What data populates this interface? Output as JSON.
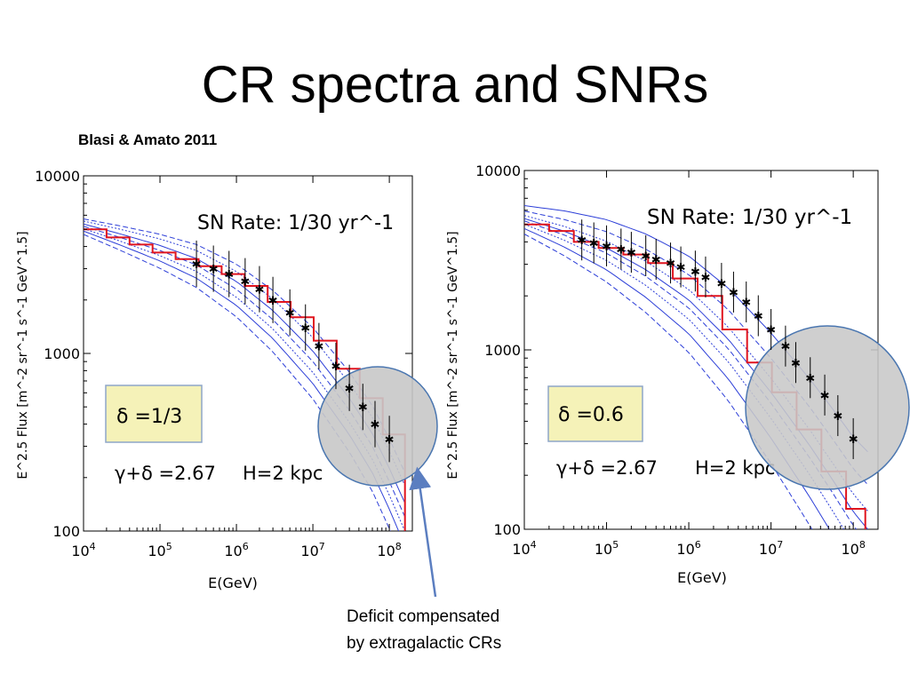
{
  "slide": {
    "title": "CR spectra and SNRs",
    "citation": "Blasi & Amato 2011",
    "caption_line1": "Deficit compensated",
    "caption_line2": "by extragalactic CRs"
  },
  "colors": {
    "model_lines": "#2d3fd8",
    "data_histogram": "#e0141e",
    "data_points": "#000000",
    "param_box_fill": "#f5f2b8",
    "param_box_border": "#8ea6c9",
    "highlight_circle_fill": "#c8c8c8",
    "highlight_circle_border": "#4a76b0",
    "arrow": "#5b7ec0"
  },
  "chart_data": [
    {
      "type": "line",
      "xscale": "log",
      "yscale": "log",
      "xlim": [
        10000,
        200000000
      ],
      "ylim": [
        100,
        10000
      ],
      "xlabel": "E(GeV)",
      "ylabel": "E^2.5 Flux [m^-2 sr^-1 s^-1 GeV^1.5]",
      "x_tick_labels": [
        "10^4",
        "10^5",
        "10^6",
        "10^7",
        "10^8"
      ],
      "y_tick_labels": [
        "100",
        "1000",
        "10000"
      ],
      "annotation_rate": "SN Rate: 1/30 yr^-1",
      "param_box_text": "δ =1/3",
      "annotation_params": "γ+δ =2.67",
      "annotation_halo": "H=2 kpc",
      "model_curve": {
        "x": [
          10000,
          30000,
          100000,
          300000,
          1000000,
          3000000,
          10000000,
          30000000,
          60000000,
          100000000,
          160000000
        ],
        "y": [
          5200,
          4500,
          3800,
          3150,
          2300,
          1550,
          900,
          480,
          300,
          190,
          120
        ]
      },
      "model_spread_factors": [
        0.9,
        0.94,
        0.97,
        1.0,
        1.03,
        1.07,
        1.1
      ],
      "histogram": {
        "edges": [
          10000,
          20000,
          40000,
          80000,
          160000,
          320000,
          640000,
          1280000,
          2560000,
          5120000,
          10240000,
          20480000,
          40960000,
          81920000,
          160000000
        ],
        "values": [
          5000,
          4500,
          4100,
          3700,
          3400,
          3100,
          2800,
          2400,
          1950,
          1600,
          1180,
          820,
          560,
          350
        ]
      },
      "points": {
        "x": [
          300000,
          500000,
          800000,
          1300000,
          2000000,
          3000000,
          5000000,
          8000000,
          12000000,
          20000000,
          30000000,
          45000000,
          65000000,
          100000000
        ],
        "y": [
          3200,
          3000,
          2800,
          2550,
          2300,
          2000,
          1700,
          1400,
          1100,
          850,
          640,
          500,
          400,
          330
        ],
        "err_factor": 1.35
      }
    },
    {
      "type": "line",
      "xscale": "log",
      "yscale": "log",
      "xlim": [
        10000,
        200000000
      ],
      "ylim": [
        100,
        10000
      ],
      "xlabel": "E(GeV)",
      "ylabel": "E^2.5 Flux [m^-2 sr^-1 s^-1 GeV^1.5]",
      "x_tick_labels": [
        "10^4",
        "10^5",
        "10^6",
        "10^7",
        "10^8"
      ],
      "y_tick_labels": [
        "100",
        "1000",
        "10000"
      ],
      "annotation_rate": "SN Rate: 1/30 yr^-1",
      "param_box_text": "δ =0.6",
      "annotation_params": "γ+δ =2.67",
      "annotation_halo": "H=2 kpc",
      "model_curve": {
        "x": [
          10000,
          30000,
          100000,
          300000,
          1000000,
          3000000,
          10000000,
          30000000,
          60000000,
          100000000,
          150000000
        ],
        "y": [
          5400,
          4600,
          3700,
          2800,
          1900,
          1150,
          580,
          290,
          180,
          125,
          100
        ]
      },
      "model_spread_factors": [
        0.82,
        0.88,
        0.93,
        0.97,
        1.0,
        1.04,
        1.1,
        1.18
      ],
      "histogram": {
        "edges": [
          10000,
          20000,
          40000,
          80000,
          160000,
          320000,
          640000,
          1280000,
          2560000,
          5120000,
          10240000,
          20480000,
          40960000,
          81920000,
          140000000
        ],
        "values": [
          5000,
          4600,
          4000,
          3700,
          3400,
          3050,
          2500,
          2000,
          1300,
          850,
          580,
          360,
          210,
          130
        ]
      },
      "points": {
        "x": [
          50000,
          70000,
          100000,
          150000,
          200000,
          300000,
          400000,
          600000,
          800000,
          1200000,
          1600000,
          2500000,
          3500000,
          5000000,
          7000000,
          10000000,
          15000000,
          20000000,
          30000000,
          45000000,
          65000000,
          100000000
        ],
        "y": [
          4100,
          3950,
          3800,
          3650,
          3500,
          3350,
          3200,
          3050,
          2900,
          2750,
          2550,
          2350,
          2100,
          1850,
          1550,
          1300,
          1050,
          850,
          700,
          560,
          430,
          320
        ],
        "err_factor": 1.3
      }
    }
  ]
}
